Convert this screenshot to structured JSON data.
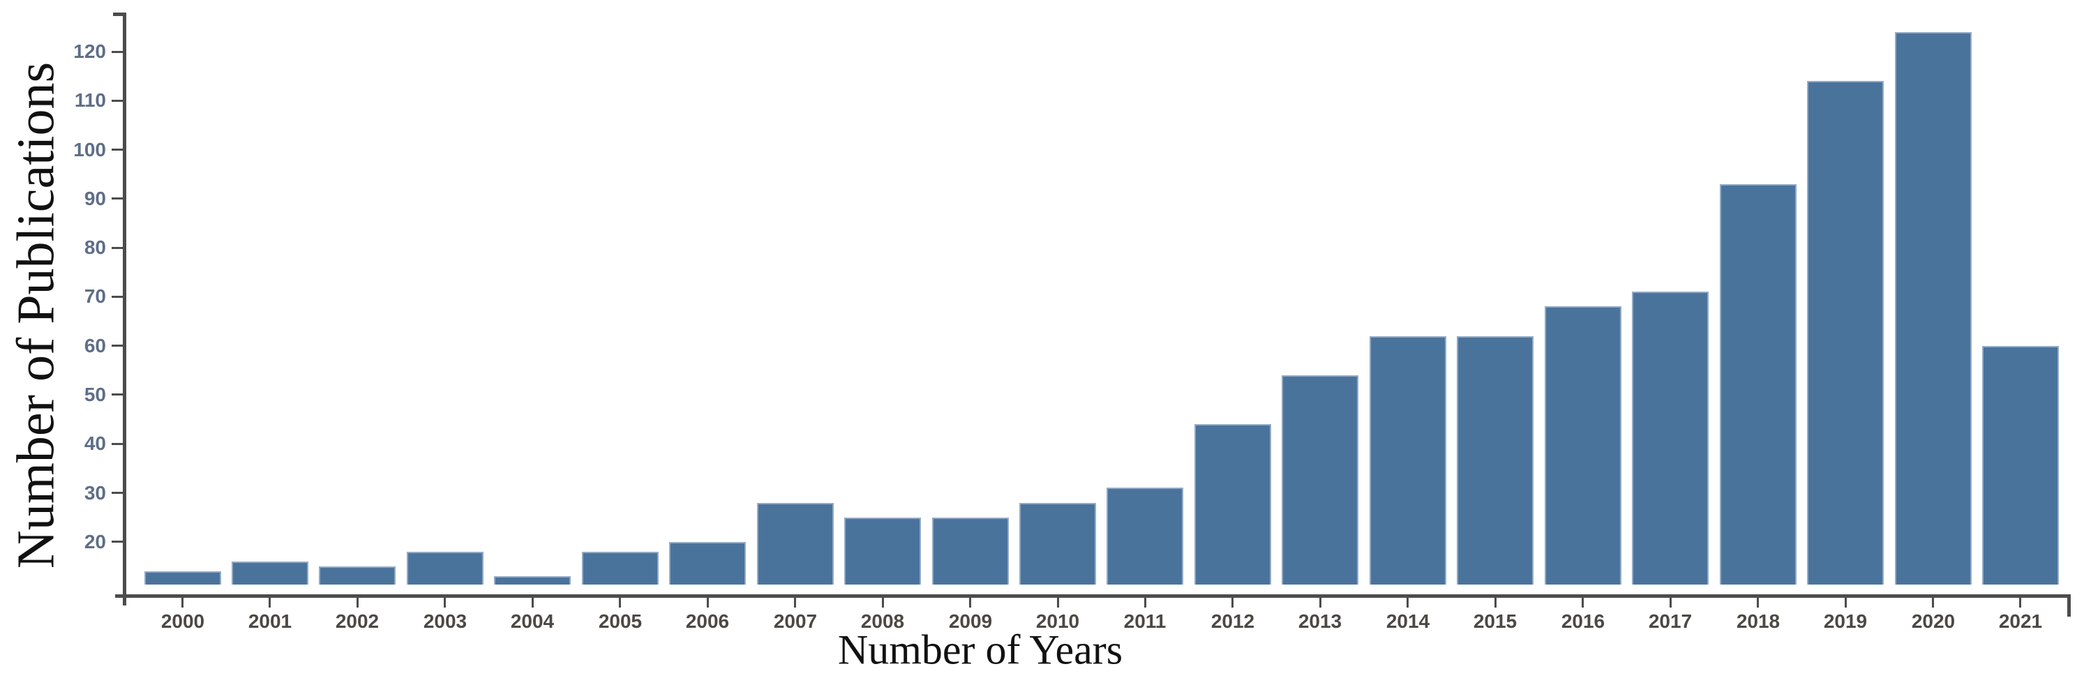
{
  "chart_data": {
    "type": "bar",
    "title": "",
    "xlabel": "Number of Years",
    "ylabel": "Number of Publications",
    "categories": [
      "2000",
      "2001",
      "2002",
      "2003",
      "2004",
      "2005",
      "2006",
      "2007",
      "2008",
      "2009",
      "2010",
      "2011",
      "2012",
      "2013",
      "2014",
      "2015",
      "2016",
      "2017",
      "2018",
      "2019",
      "2020",
      "2021"
    ],
    "values": [
      14,
      16,
      15,
      18,
      13,
      18,
      20,
      28,
      25,
      25,
      28,
      31,
      44,
      54,
      62,
      62,
      68,
      71,
      93,
      114,
      124,
      60
    ],
    "y_ticks": [
      20,
      30,
      40,
      50,
      60,
      70,
      80,
      90,
      100,
      110,
      120
    ],
    "ylim": [
      10,
      127
    ],
    "grid": false,
    "legend": "none",
    "bar_color": "#4a739c",
    "bar_edge_color": "#93abc6",
    "axis_color": "#4c4c4c",
    "y_tick_label_color": "#5e6e88",
    "x_tick_label_color": "#4d4844"
  }
}
